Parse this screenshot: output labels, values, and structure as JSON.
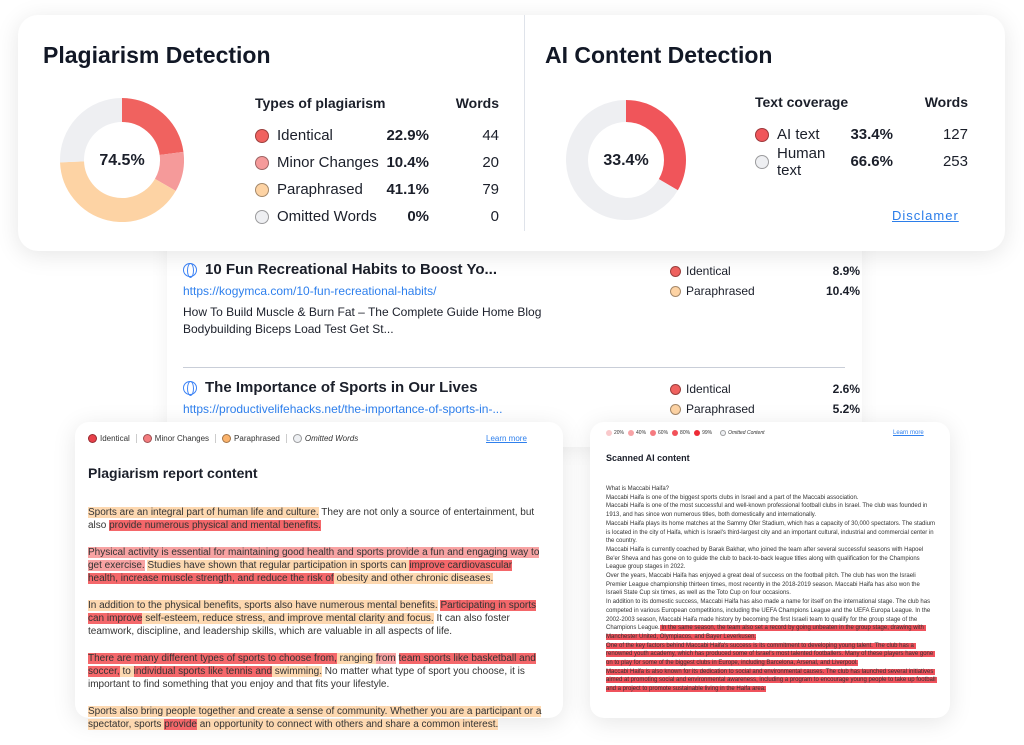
{
  "plagiarism": {
    "title": "Plagiarism Detection",
    "score": "74.5%",
    "col_type": "Types of plagiarism",
    "col_words": "Words",
    "rows": [
      {
        "label": "Identical",
        "pct": "22.9%",
        "words": "44",
        "value": 22.9,
        "color": "#f0625f"
      },
      {
        "label": "Minor Changes",
        "pct": "10.4%",
        "words": "20",
        "value": 10.4,
        "color": "#f59a9a"
      },
      {
        "label": "Paraphrased",
        "pct": "41.1%",
        "words": "79",
        "value": 41.1,
        "color": "#fdd3a4"
      },
      {
        "label": "Omitted Words",
        "pct": "0%",
        "words": "0",
        "value": 0,
        "color": "#eeeff2"
      }
    ]
  },
  "ai": {
    "title": "AI Content Detection",
    "score": "33.4%",
    "col_type": "Text coverage",
    "col_words": "Words",
    "rows": [
      {
        "label": "AI text",
        "pct": "33.4%",
        "words": "127",
        "value": 33.4,
        "color": "#f0555a"
      },
      {
        "label": "Human text",
        "pct": "66.6%",
        "words": "253",
        "value": 66.6,
        "color": "#eeeff2"
      }
    ],
    "disclaimer": "Disclamer"
  },
  "sources": [
    {
      "title": "10 Fun Recreational Habits to Boost Yo...",
      "url": "https://kogymca.com/10-fun-recreational-habits/",
      "desc": "How To Build Muscle & Burn Fat – The Complete Guide Home Blog Bodybuilding Biceps Load Test Get St...",
      "stats": [
        {
          "label": "Identical",
          "pct": "8.9%"
        },
        {
          "label": "Paraphrased",
          "pct": "10.4%"
        }
      ]
    },
    {
      "title": "The Importance of Sports in Our Lives",
      "url": "https://productivelifehacks.net/the-importance-of-sports-in-...",
      "desc": "",
      "stats": [
        {
          "label": "Identical",
          "pct": "2.6%"
        },
        {
          "label": "Paraphrased",
          "pct": "5.2%"
        }
      ]
    }
  ],
  "report": {
    "legend": [
      "Identical",
      "Minor Changes",
      "Paraphrased",
      "Omitted Words"
    ],
    "learn_more": "Learn more",
    "title": "Plagiarism report content",
    "paragraphs": [
      [
        {
          "t": "Sports are an integral part of human life and culture.",
          "c": "paraphrased"
        },
        {
          "t": " They are not only a source of entertainment, but also ",
          "c": ""
        },
        {
          "t": "provide numerous physical and mental benefits.",
          "c": "identical"
        }
      ],
      [
        {
          "t": "Physical activity is essential for maintaining good health and sports provide a fun and engaging way to get exercise.",
          "c": "minor"
        },
        {
          "t": " ",
          "c": ""
        },
        {
          "t": "Studies have shown that regular participation in sports can ",
          "c": "paraphrased"
        },
        {
          "t": "improve cardiovascular health, increase muscle strength, and reduce the risk of",
          "c": "identical"
        },
        {
          "t": " obesity and other chronic diseases.",
          "c": "paraphrased"
        }
      ],
      [
        {
          "t": "In addition to the physical benefits, sports also have numerous mental benefits.",
          "c": "paraphrased"
        },
        {
          "t": " ",
          "c": ""
        },
        {
          "t": "Participating in sports can improve",
          "c": "identical"
        },
        {
          "t": " self-esteem, reduce stress, and improve mental clarity and focus.",
          "c": "paraphrased"
        },
        {
          "t": " It can also foster teamwork, discipline, and leadership skills, which are valuable in all aspects of life.",
          "c": ""
        }
      ],
      [
        {
          "t": "There are many different types of sports to choose from,",
          "c": "identical"
        },
        {
          "t": " ranging ",
          "c": "paraphrased"
        },
        {
          "t": "from",
          "c": "minor"
        },
        {
          "t": " ",
          "c": ""
        },
        {
          "t": "team sports like basketball and soccer,",
          "c": "identical"
        },
        {
          "t": " to ",
          "c": "paraphrased"
        },
        {
          "t": "individual sports like tennis and",
          "c": "identical"
        },
        {
          "t": " swimming.",
          "c": "paraphrased"
        },
        {
          "t": " No matter what type of sport you choose, it is important to find something that you enjoy and that fits your lifestyle.",
          "c": ""
        }
      ],
      [
        {
          "t": "Sports also bring people together and create a sense of community. Whether you are a participant or a spectator, sports ",
          "c": "paraphrased"
        },
        {
          "t": "provide",
          "c": "identical"
        },
        {
          "t": " an opportunity to connect with others and share a common interest.",
          "c": "paraphrased"
        }
      ]
    ]
  },
  "scanned": {
    "legend": [
      "20%",
      "40%",
      "60%",
      "80%",
      "99%",
      "Omitted Content"
    ],
    "learn_more": "Learn more",
    "title": "Scanned AI content",
    "segments": [
      {
        "t": "What is Maccabi Haifa?\nMaccabi Haifa is one of the biggest sports clubs in Israel and a part of the Maccabi association.\nMaccabi Haifa is one of the most successful and well-known professional football clubs in Israel. The club was founded in 1913, and has since won numerous titles, both domestically and internationally.\nMaccabi Haifa plays its home matches at the Sammy Ofer Stadium, which has a capacity of 30,000 spectators. The stadium is located in the city of Haifa, which is Israel's third-largest city and an important cultural, industrial and commercial center in the country.\nMaccabi Haifa is currently coached by Barak Bakhar, who joined the team after several successful seasons with Hapoel Be'er Sheva and has gone on to guide the club to back-to-back league titles along with qualification for the Champions League group stages in 2022.\nOver the years, Maccabi Haifa has enjoyed a great deal of success on the football pitch. The club has won the Israeli Premier League championship thirteen times, most recently in the 2018-2019 season. Maccabi Haifa has also won the Israeli State Cup six times, as well as the Toto Cup on four occasions.\nIn addition to its domestic success, Maccabi Haifa has also made a name for itself on the international stage. The club has competed in various European competitions, including the UEFA Champions League and the UEFA Europa League. In the 2002-2003 season, Maccabi Haifa made history by becoming the first Israeli team to qualify for the group stage of the Champions League.",
        "c": ""
      },
      {
        "t": " In the same season, the team also set a record by going unbeaten in the group stage, drawing with Manchester United, Olympiacos, and Bayer Leverkusen.\nOne of the key factors behind Maccabi Haifa's success is its commitment to developing young talent. The club has a renowned youth academy, which has produced some of Israel's most talented footballers. Many of these players have gone on to play for some of the biggest clubs in Europe, including Barcelona, Arsenal, and Liverpool.\nMaccabi Haifa is also known for its dedication to social and environmental causes. The club has launched several initiatives aimed at promoting social and environmental awareness, including a program to encourage young people to take up football and a project to promote sustainable living in the Haifa area.",
        "c": "ai"
      }
    ]
  }
}
